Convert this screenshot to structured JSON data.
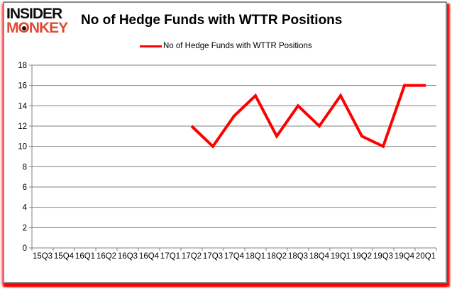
{
  "logo": {
    "line1": "INSIDER",
    "line2": "MONKEY",
    "line1_color": "#0d0d0d",
    "line2_color": "#dd4a38"
  },
  "header": {
    "title": "No of Hedge Funds with WTTR Positions"
  },
  "legend": {
    "label": "No of Hedge Funds with WTTR Positions",
    "line_color": "#ff0000"
  },
  "chart_data": {
    "type": "line",
    "title": "No of Hedge Funds with WTTR Positions",
    "xlabel": "",
    "ylabel": "",
    "categories": [
      "15Q3",
      "15Q4",
      "16Q1",
      "16Q2",
      "16Q3",
      "16Q4",
      "17Q1",
      "17Q2",
      "17Q3",
      "17Q4",
      "18Q1",
      "18Q2",
      "18Q3",
      "18Q4",
      "19Q1",
      "19Q2",
      "19Q3",
      "19Q4",
      "20Q1"
    ],
    "series": [
      {
        "name": "No of Hedge Funds with WTTR Positions",
        "color": "#ff0000",
        "line_width": 4,
        "values": [
          null,
          null,
          null,
          null,
          null,
          null,
          null,
          12,
          10,
          13,
          15,
          11,
          14,
          12,
          15,
          11,
          10,
          16,
          16
        ]
      }
    ],
    "ylim": [
      0,
      18
    ],
    "ytick_step": 2,
    "ytick_labels": [
      "0",
      "2",
      "4",
      "6",
      "8",
      "10",
      "12",
      "14",
      "16",
      "18"
    ],
    "grid": true,
    "legend_position": "top-center"
  },
  "colors": {
    "grid": "#808080",
    "axis": "#808080",
    "tick_text": "#000000",
    "background": "#ffffff",
    "frame_border": "#8a8a8a",
    "glow": "#ff0000"
  }
}
